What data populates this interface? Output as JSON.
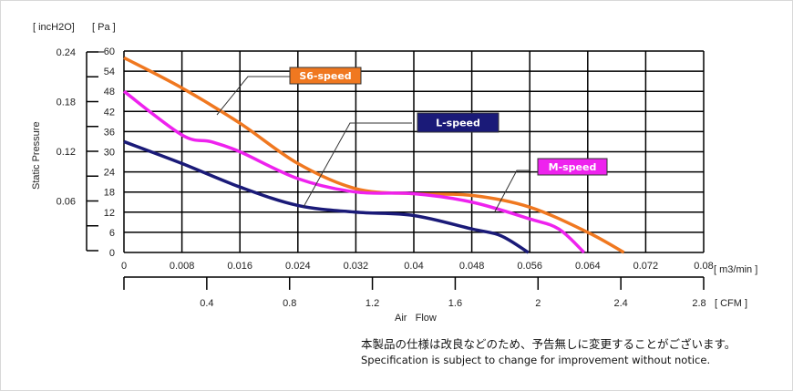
{
  "chart_data": {
    "type": "line",
    "title": "",
    "xlabel": "Air   Flow",
    "ylabel": "Static Pressure",
    "x_unit_primary": "[ m3/min ]",
    "x_unit_secondary": "[ CFM ]",
    "y_unit_primary": "[ Pa ]",
    "y_unit_secondary": "[ incH2O]",
    "xlim": [
      0,
      0.08
    ],
    "ylim": [
      0,
      60
    ],
    "grid": true,
    "x_ticks": [
      "0",
      "0.008",
      "0.016",
      "0.024",
      "0.032",
      "0.04",
      "0.048",
      "0.056",
      "0.064",
      "0.072",
      "0.08"
    ],
    "y_ticks": [
      "0",
      "6",
      "12",
      "18",
      "24",
      "30",
      "36",
      "42",
      "48",
      "54",
      "60"
    ],
    "cfm_ticks": [
      "0.4",
      "0.8",
      "1.2",
      "1.6",
      "2",
      "2.4",
      "2.8"
    ],
    "inch_ticks": [
      "0.06",
      "0.12",
      "0.18",
      "0.24"
    ],
    "series": [
      {
        "name": "S6-speed",
        "color": "#f07820",
        "x": [
          0,
          0.008,
          0.016,
          0.024,
          0.032,
          0.04,
          0.048,
          0.056,
          0.064,
          0.069
        ],
        "y": [
          58,
          49,
          38.5,
          26.5,
          19,
          17.5,
          17,
          13.5,
          6,
          0
        ]
      },
      {
        "name": "M-speed",
        "color": "#ee22ee",
        "x": [
          0,
          0.008,
          0.012,
          0.016,
          0.024,
          0.032,
          0.04,
          0.048,
          0.056,
          0.06,
          0.0635
        ],
        "y": [
          48,
          35,
          33,
          30,
          22,
          18,
          17.5,
          15,
          10,
          7,
          0
        ]
      },
      {
        "name": "L-speed",
        "color": "#1a1a78",
        "x": [
          0,
          0.008,
          0.016,
          0.024,
          0.032,
          0.04,
          0.048,
          0.052,
          0.0558
        ],
        "y": [
          33,
          26.5,
          19.5,
          14,
          12,
          11,
          7,
          5,
          0
        ]
      }
    ]
  },
  "notes": {
    "japanese": "本製品の仕様は改良などのため、予告無しに変更することがございます。",
    "english": "Specification is subject to change for improvement without notice."
  }
}
